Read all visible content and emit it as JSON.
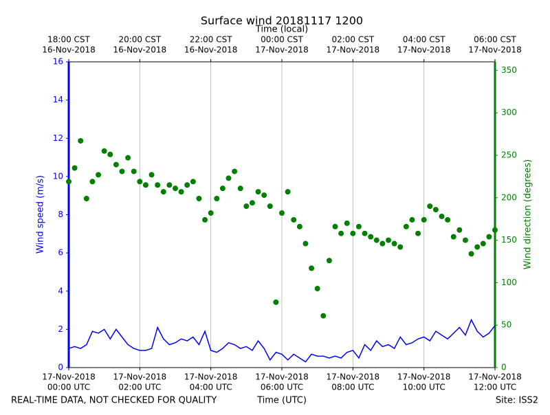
{
  "chart_data": {
    "type": "line",
    "title": "Surface wind 20181117 1200",
    "x2label": "Time (local)",
    "xlabel": "Time (UTC)",
    "ylabel": "Wind speed (m/s)",
    "y2label": "Wind direction (degrees)",
    "footer_left": "REAL-TIME DATA, NOT CHECKED FOR QUALITY",
    "footer_right": "Site: ISS2",
    "xlim": [
      "2018-11-17 00:00",
      "2018-11-17 12:00"
    ],
    "xticks": [
      {
        "value": "2018-11-17 00:00",
        "label": [
          "17-Nov-2018",
          "00:00 UTC"
        ]
      },
      {
        "value": "2018-11-17 02:00",
        "label": [
          "17-Nov-2018",
          "02:00 UTC"
        ]
      },
      {
        "value": "2018-11-17 04:00",
        "label": [
          "17-Nov-2018",
          "04:00 UTC"
        ]
      },
      {
        "value": "2018-11-17 06:00",
        "label": [
          "17-Nov-2018",
          "06:00 UTC"
        ]
      },
      {
        "value": "2018-11-17 08:00",
        "label": [
          "17-Nov-2018",
          "08:00 UTC"
        ]
      },
      {
        "value": "2018-11-17 10:00",
        "label": [
          "17-Nov-2018",
          "10:00 UTC"
        ]
      },
      {
        "value": "2018-11-17 12:00",
        "label": [
          "17-Nov-2018",
          "12:00 UTC"
        ]
      }
    ],
    "x2ticks": [
      {
        "value": "2018-11-17 00:00",
        "label": [
          "18:00 CST",
          "16-Nov-2018"
        ]
      },
      {
        "value": "2018-11-17 02:00",
        "label": [
          "20:00 CST",
          "16-Nov-2018"
        ]
      },
      {
        "value": "2018-11-17 04:00",
        "label": [
          "22:00 CST",
          "16-Nov-2018"
        ]
      },
      {
        "value": "2018-11-17 06:00",
        "label": [
          "00:00 CST",
          "17-Nov-2018"
        ]
      },
      {
        "value": "2018-11-17 08:00",
        "label": [
          "02:00 CST",
          "17-Nov-2018"
        ]
      },
      {
        "value": "2018-11-17 10:00",
        "label": [
          "04:00 CST",
          "17-Nov-2018"
        ]
      },
      {
        "value": "2018-11-17 12:00",
        "label": [
          "06:00 CST",
          "17-Nov-2018"
        ]
      }
    ],
    "ylim": [
      0,
      16
    ],
    "yticks": [
      0,
      2,
      4,
      6,
      8,
      10,
      12,
      14,
      16
    ],
    "y2lim": [
      0,
      360
    ],
    "y2ticks": [
      0,
      50,
      100,
      150,
      200,
      250,
      300,
      350
    ],
    "grid": true,
    "x": [
      "2018-11-17 00:00",
      "2018-11-17 00:10",
      "2018-11-17 00:20",
      "2018-11-17 00:30",
      "2018-11-17 00:40",
      "2018-11-17 00:50",
      "2018-11-17 01:00",
      "2018-11-17 01:10",
      "2018-11-17 01:20",
      "2018-11-17 01:30",
      "2018-11-17 01:40",
      "2018-11-17 01:50",
      "2018-11-17 02:00",
      "2018-11-17 02:10",
      "2018-11-17 02:20",
      "2018-11-17 02:30",
      "2018-11-17 02:40",
      "2018-11-17 02:50",
      "2018-11-17 03:00",
      "2018-11-17 03:10",
      "2018-11-17 03:20",
      "2018-11-17 03:30",
      "2018-11-17 03:40",
      "2018-11-17 03:50",
      "2018-11-17 04:00",
      "2018-11-17 04:10",
      "2018-11-17 04:20",
      "2018-11-17 04:30",
      "2018-11-17 04:40",
      "2018-11-17 04:50",
      "2018-11-17 05:00",
      "2018-11-17 05:10",
      "2018-11-17 05:20",
      "2018-11-17 05:30",
      "2018-11-17 05:40",
      "2018-11-17 05:50",
      "2018-11-17 06:00",
      "2018-11-17 06:10",
      "2018-11-17 06:20",
      "2018-11-17 06:30",
      "2018-11-17 06:40",
      "2018-11-17 06:50",
      "2018-11-17 07:00",
      "2018-11-17 07:10",
      "2018-11-17 07:20",
      "2018-11-17 07:30",
      "2018-11-17 07:40",
      "2018-11-17 07:50",
      "2018-11-17 08:00",
      "2018-11-17 08:10",
      "2018-11-17 08:20",
      "2018-11-17 08:30",
      "2018-11-17 08:40",
      "2018-11-17 08:50",
      "2018-11-17 09:00",
      "2018-11-17 09:10",
      "2018-11-17 09:20",
      "2018-11-17 09:30",
      "2018-11-17 09:40",
      "2018-11-17 09:50",
      "2018-11-17 10:00",
      "2018-11-17 10:10",
      "2018-11-17 10:20",
      "2018-11-17 10:30",
      "2018-11-17 10:40",
      "2018-11-17 10:50",
      "2018-11-17 11:00",
      "2018-11-17 11:10",
      "2018-11-17 11:20",
      "2018-11-17 11:30",
      "2018-11-17 11:40",
      "2018-11-17 11:50",
      "2018-11-17 12:00"
    ],
    "series": [
      {
        "color": "#0000ff",
        "style": "line",
        "axis": "y",
        "values": [
          1.0,
          1.1,
          1.0,
          1.2,
          1.9,
          1.8,
          2.0,
          1.5,
          2.0,
          1.6,
          1.2,
          1.0,
          0.9,
          0.9,
          1.0,
          2.1,
          1.5,
          1.2,
          1.3,
          1.5,
          1.4,
          1.6,
          1.2,
          1.9,
          0.9,
          0.8,
          1.0,
          1.3,
          1.2,
          1.0,
          1.1,
          0.9,
          1.4,
          1.0,
          0.4,
          0.8,
          0.7,
          0.4,
          0.7,
          0.5,
          0.3,
          0.7,
          0.6,
          0.6,
          0.5,
          0.6,
          0.5,
          0.8,
          0.9,
          0.5,
          1.2,
          0.9,
          1.4,
          1.1,
          1.2,
          1.0,
          1.6,
          1.2,
          1.3,
          1.5,
          1.6,
          1.4,
          1.9,
          1.7,
          1.5,
          1.8,
          2.1,
          1.7,
          2.5,
          1.9,
          1.6,
          1.8,
          2.2
        ]
      },
      {
        "color": "#008000",
        "style": "scatter",
        "axis": "y2",
        "values": [
          219,
          235,
          267,
          199,
          219,
          227,
          255,
          251,
          239,
          231,
          247,
          231,
          219,
          215,
          227,
          215,
          207,
          215,
          211,
          207,
          215,
          219,
          199,
          174,
          182,
          199,
          211,
          223,
          231,
          211,
          190,
          194,
          207,
          203,
          190,
          77,
          182,
          207,
          174,
          166,
          146,
          117,
          93,
          61,
          126,
          166,
          158,
          170,
          158,
          166,
          158,
          154,
          150,
          146,
          150,
          146,
          142,
          166,
          174,
          158,
          174,
          190,
          186,
          178,
          174,
          154,
          162,
          150,
          134,
          142,
          146,
          154,
          162
        ]
      }
    ]
  }
}
